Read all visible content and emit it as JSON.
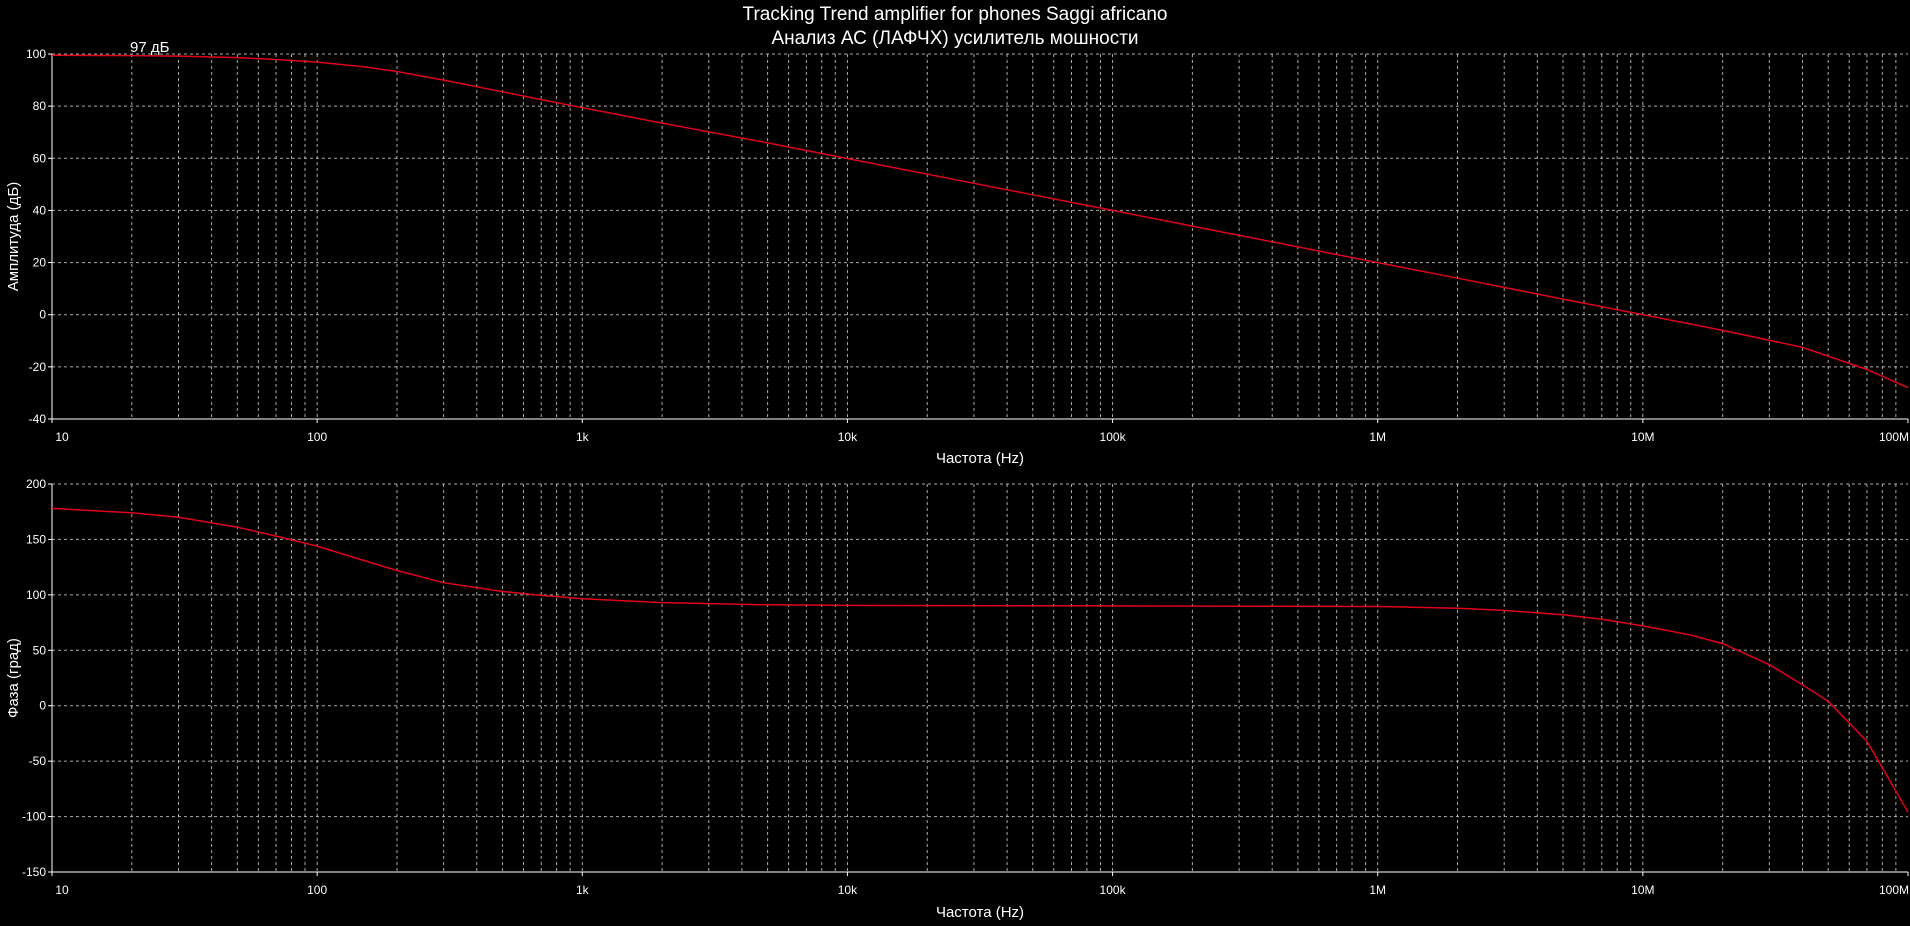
{
  "title_line1": "Tracking Trend amplifier for phones Saggi africano",
  "title_line2": "Анализ АС (ЛАФЧХ) усилитель мошности",
  "colors": {
    "background": "#000000",
    "axis": "#ffffff",
    "grid": "#c8c8c8",
    "trace": "#e0001b",
    "text": "#ffffff"
  },
  "chart_data": [
    {
      "type": "line",
      "id": "amplitude",
      "xscale": "log",
      "xlabel": "Частота (Hz)",
      "ylabel": "Амплитуда (дБ)",
      "xlim": [
        10,
        100000000
      ],
      "ylim": [
        -40,
        100
      ],
      "x_tick_labels": [
        "10",
        "100",
        "1k",
        "10k",
        "100k",
        "1M",
        "10M",
        "100M"
      ],
      "y_ticks": [
        100,
        80,
        60,
        40,
        20,
        0,
        -20,
        -40
      ],
      "grid": true,
      "annotation": "97 дБ",
      "series": [
        {
          "x": [
            10,
            20,
            30,
            50,
            70,
            100,
            150,
            200,
            300,
            500,
            700,
            1000,
            2000,
            5000,
            10000,
            20000,
            50000,
            100000,
            200000,
            500000,
            1000000,
            2000000,
            5000000,
            10000000,
            20000000,
            40000000,
            70000000,
            100000000
          ],
          "y": [
            99.5,
            99.4,
            99.2,
            98.6,
            97.9,
            96.9,
            95.1,
            93.3,
            90,
            85.5,
            82.5,
            79.4,
            73.5,
            65.9,
            59.9,
            53.9,
            46,
            40,
            34,
            26,
            20,
            14,
            6,
            0,
            -6,
            -12.5,
            -21,
            -28
          ]
        }
      ]
    },
    {
      "type": "line",
      "id": "phase",
      "xscale": "log",
      "xlabel": "Частота (Hz)",
      "ylabel": "Фаза (град)",
      "xlim": [
        10,
        100000000
      ],
      "ylim": [
        -150,
        200
      ],
      "x_tick_labels": [
        "10",
        "100",
        "1k",
        "10k",
        "100k",
        "1M",
        "10M",
        "100M"
      ],
      "y_ticks": [
        200,
        150,
        100,
        50,
        0,
        -50,
        -100,
        -150
      ],
      "grid": true,
      "series": [
        {
          "x": [
            10,
            20,
            30,
            50,
            70,
            100,
            150,
            200,
            300,
            500,
            700,
            1000,
            2000,
            5000,
            10000,
            100000,
            1000000,
            2000000,
            3000000,
            5000000,
            7000000,
            10000000,
            15000000,
            20000000,
            30000000,
            40000000,
            50000000,
            70000000,
            100000000
          ],
          "y": [
            178,
            174,
            170,
            161,
            153,
            144,
            131,
            122,
            111,
            103,
            99.5,
            96.5,
            93,
            91,
            90.5,
            90,
            89.5,
            88,
            86,
            82,
            78,
            72,
            64,
            56,
            37,
            19,
            4,
            -32,
            -96
          ]
        }
      ]
    }
  ]
}
